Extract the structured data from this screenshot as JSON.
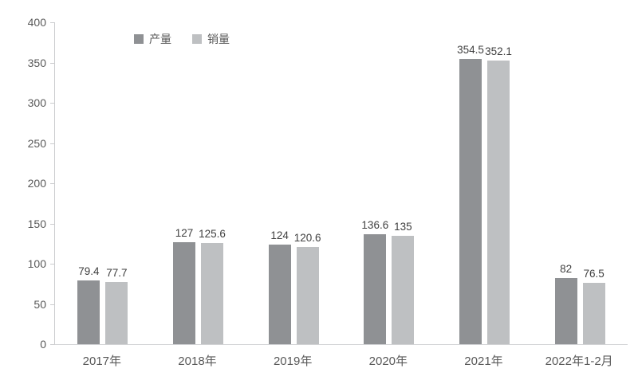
{
  "chart_data": {
    "type": "bar",
    "title": "",
    "xlabel": "",
    "ylabel": "",
    "categories": [
      "2017年",
      "2018年",
      "2019年",
      "2020年",
      "2021年",
      "2022年1-2月"
    ],
    "series": [
      {
        "name": "产量",
        "color": "#8f9194",
        "values": [
          79.4,
          127,
          124,
          136.6,
          354.5,
          82
        ]
      },
      {
        "name": "销量",
        "color": "#bec0c2",
        "values": [
          77.7,
          125.6,
          120.6,
          135,
          352.1,
          76.5
        ]
      }
    ],
    "data_labels": [
      [
        "79.4",
        "127",
        "124",
        "136.6",
        "354.5",
        "82"
      ],
      [
        "77.7",
        "125.6",
        "120.6",
        "135",
        "352.1",
        "76.5"
      ]
    ],
    "ylim": [
      0,
      400
    ],
    "yticks": [
      0,
      50,
      100,
      150,
      200,
      250,
      300,
      350,
      400
    ],
    "grid": false,
    "legend_position": "top-left-inset"
  },
  "colors": {
    "axis_line": "#cbccce",
    "tick_label": "#595959",
    "data_label": "#3f3f3f",
    "background": "#ffffff"
  }
}
